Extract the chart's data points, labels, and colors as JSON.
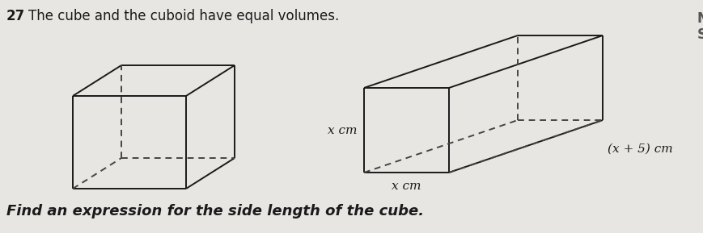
{
  "title_number": "27",
  "title_text": "The cube and the cuboid have equal volumes.",
  "footer_text": "Find an expression for the side length of the cube.",
  "right_letters": [
    "N",
    "S"
  ],
  "cuboid_label_x_side": "x cm",
  "cuboid_label_x_bottom": "x cm",
  "cuboid_label_length": "(x + 5) cm",
  "bg_color": "#e8e6e3",
  "line_color": "#1a1a1a",
  "dashed_color": "#444444",
  "title_fontsize": 12,
  "footer_fontsize": 13,
  "label_fontsize": 11
}
